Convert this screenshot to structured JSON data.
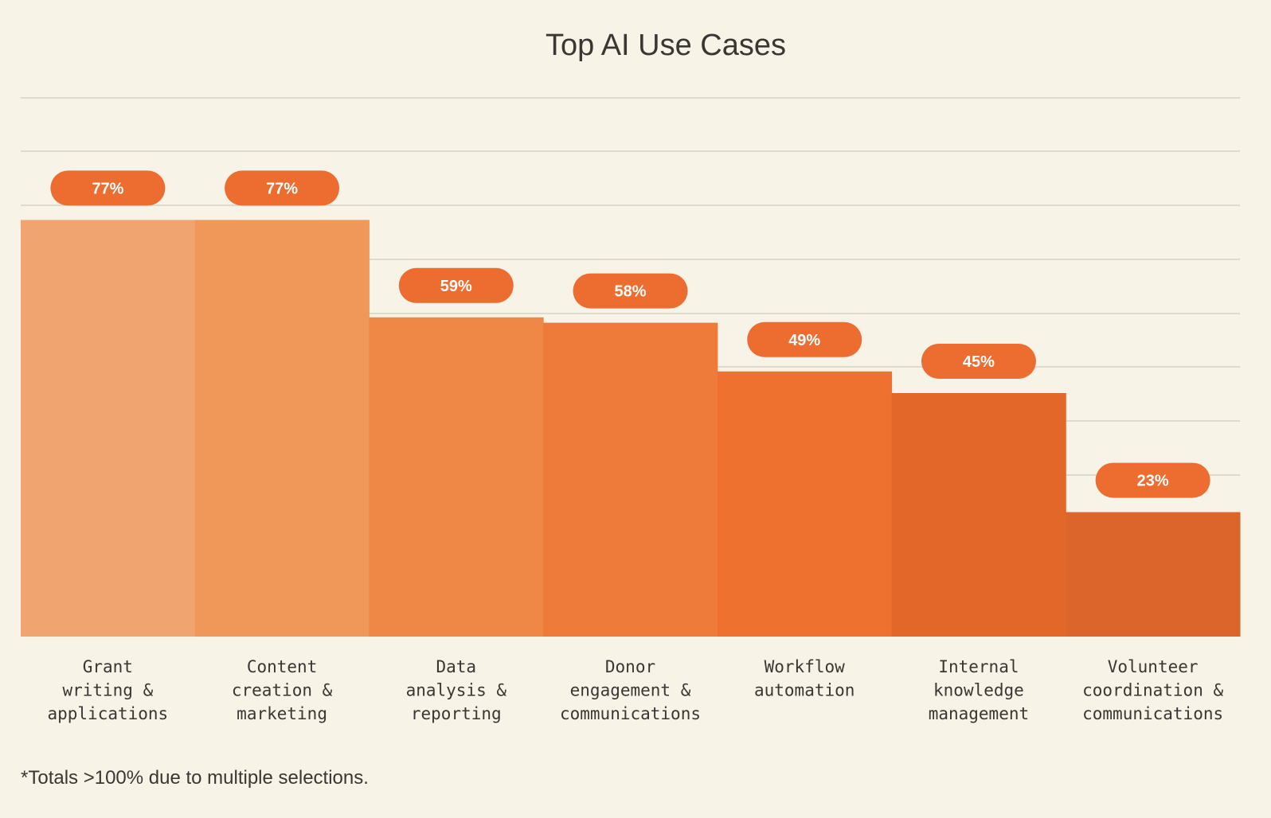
{
  "chart_data": {
    "type": "bar",
    "title": "Top AI Use Cases",
    "categories": [
      [
        "Grant",
        "writing &",
        "applications"
      ],
      [
        "Content",
        "creation &",
        "marketing"
      ],
      [
        "Data",
        "analysis &",
        "reporting"
      ],
      [
        "Donor",
        "engagement &",
        "communications"
      ],
      [
        "Workflow",
        "automation"
      ],
      [
        "Internal",
        "knowledge",
        "management"
      ],
      [
        "Volunteer",
        "coordination &",
        "communications"
      ]
    ],
    "values": [
      77,
      77,
      59,
      58,
      49,
      45,
      23
    ],
    "value_labels": [
      "77%",
      "77%",
      "59%",
      "58%",
      "49%",
      "45%",
      "23%"
    ],
    "colors": [
      "#f0a470",
      "#f0975a",
      "#ef8847",
      "#ee7b3a",
      "#ee7130",
      "#e4672a",
      "#dc652b"
    ],
    "label_color": "#ec6d2f",
    "ylim": [
      0,
      100
    ],
    "grid": true,
    "xlabel": "",
    "ylabel": "",
    "footnote": "*Totals >100% due to multiple selections."
  }
}
